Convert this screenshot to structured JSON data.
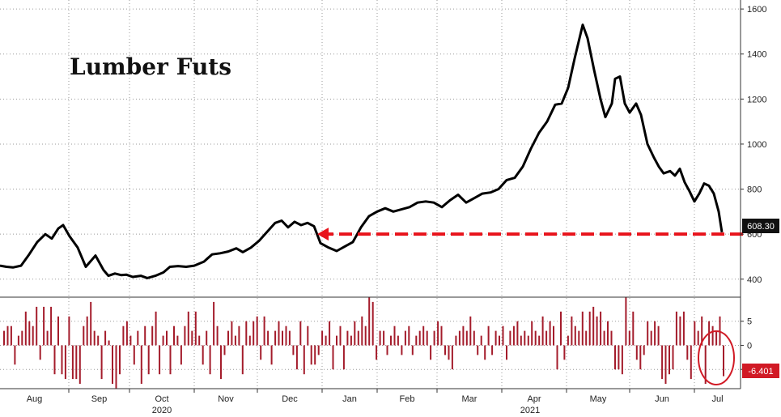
{
  "chart_data": [
    {
      "type": "line",
      "title": "Lumber Futs",
      "series": [
        {
          "values": [
            [
              0,
              460
            ],
            [
              8,
              455
            ],
            [
              16,
              452
            ],
            [
              26,
              460
            ],
            [
              36,
              510
            ],
            [
              46,
              565
            ],
            [
              56,
              600
            ],
            [
              64,
              580
            ],
            [
              72,
              625
            ],
            [
              78,
              640
            ],
            [
              86,
              590
            ],
            [
              96,
              540
            ],
            [
              106,
              455
            ],
            [
              118,
              505
            ],
            [
              128,
              440
            ],
            [
              134,
              415
            ],
            [
              142,
              425
            ],
            [
              150,
              418
            ],
            [
              156,
              420
            ],
            [
              164,
              410
            ],
            [
              174,
              415
            ],
            [
              182,
              405
            ],
            [
              192,
              415
            ],
            [
              202,
              430
            ],
            [
              210,
              455
            ],
            [
              220,
              458
            ],
            [
              230,
              455
            ],
            [
              240,
              460
            ],
            [
              252,
              478
            ],
            [
              262,
              510
            ],
            [
              272,
              515
            ],
            [
              282,
              523
            ],
            [
              292,
              537
            ],
            [
              300,
              520
            ],
            [
              310,
              540
            ],
            [
              320,
              570
            ],
            [
              330,
              610
            ],
            [
              340,
              650
            ],
            [
              348,
              660
            ],
            [
              356,
              630
            ],
            [
              364,
              655
            ],
            [
              372,
              640
            ],
            [
              380,
              650
            ],
            [
              388,
              635
            ],
            [
              396,
              560
            ],
            [
              406,
              540
            ],
            [
              416,
              525
            ],
            [
              426,
              545
            ],
            [
              436,
              565
            ],
            [
              446,
              630
            ],
            [
              456,
              680
            ],
            [
              466,
              700
            ],
            [
              476,
              715
            ],
            [
              486,
              700
            ],
            [
              496,
              710
            ],
            [
              506,
              720
            ],
            [
              516,
              740
            ],
            [
              526,
              745
            ],
            [
              536,
              740
            ],
            [
              546,
              720
            ],
            [
              556,
              750
            ],
            [
              566,
              775
            ],
            [
              576,
              740
            ],
            [
              586,
              760
            ],
            [
              596,
              780
            ],
            [
              606,
              785
            ],
            [
              616,
              800
            ],
            [
              626,
              840
            ],
            [
              636,
              850
            ],
            [
              646,
              900
            ],
            [
              656,
              980
            ],
            [
              666,
              1050
            ],
            [
              676,
              1100
            ],
            [
              686,
              1175
            ],
            [
              694,
              1180
            ],
            [
              702,
              1250
            ],
            [
              710,
              1380
            ],
            [
              716,
              1470
            ],
            [
              720,
              1530
            ],
            [
              726,
              1470
            ],
            [
              734,
              1330
            ],
            [
              742,
              1200
            ],
            [
              748,
              1120
            ],
            [
              756,
              1180
            ],
            [
              760,
              1290
            ],
            [
              766,
              1300
            ],
            [
              772,
              1180
            ],
            [
              778,
              1140
            ],
            [
              786,
              1180
            ],
            [
              792,
              1130
            ],
            [
              800,
              1000
            ],
            [
              808,
              940
            ],
            [
              814,
              900
            ],
            [
              820,
              870
            ],
            [
              828,
              880
            ],
            [
              834,
              860
            ],
            [
              840,
              890
            ],
            [
              846,
              830
            ],
            [
              852,
              790
            ],
            [
              858,
              745
            ],
            [
              864,
              780
            ],
            [
              870,
              825
            ],
            [
              876,
              815
            ],
            [
              882,
              780
            ],
            [
              888,
              700
            ],
            [
              892,
              608.3
            ]
          ]
        }
      ],
      "ylim": [
        320,
        1640
      ],
      "y_ticks": [
        "400",
        "600",
        "800",
        "1000",
        "1200",
        "1400",
        "1600"
      ],
      "last_value_label": "608.30",
      "annotation": {
        "type": "dashed-arrow",
        "y": 600,
        "x_from": 918,
        "x_to": 392,
        "color": "#e8131b"
      }
    },
    {
      "type": "bar",
      "series": [
        {
          "values": [
            3,
            4,
            4,
            -4,
            2,
            3,
            7,
            5,
            4,
            8,
            -3,
            8,
            3,
            8,
            -6,
            6,
            -6,
            -7,
            6,
            -7,
            -7,
            -8,
            4,
            6,
            9,
            3,
            2,
            -7,
            3,
            1,
            -8,
            -9,
            -6,
            4,
            5,
            2,
            -4,
            3,
            -8,
            4,
            -6,
            4,
            7,
            -6,
            2,
            3,
            -6,
            4,
            2,
            -4,
            4,
            7,
            3,
            7,
            2,
            -4,
            3,
            -6,
            9,
            4,
            -7,
            -2,
            3,
            5,
            2,
            4,
            -6,
            5,
            2,
            5,
            6,
            -3,
            6,
            3,
            -4,
            3,
            5,
            3,
            4,
            3,
            -2,
            -5,
            5,
            -6,
            4,
            -4,
            -4,
            -2,
            3,
            2,
            5,
            -5,
            2,
            4,
            -5,
            3,
            2,
            5,
            3,
            6,
            4,
            10,
            9,
            -3,
            3,
            3,
            -2,
            2,
            4,
            2,
            -2,
            3,
            4,
            -2,
            2,
            3,
            4,
            3,
            -3,
            3,
            5,
            4,
            -2,
            -3,
            -5,
            2,
            3,
            4,
            3,
            6,
            3,
            -2,
            2,
            -3,
            4,
            -2,
            3,
            2,
            4,
            -3,
            3,
            4,
            5,
            2,
            3,
            2,
            5,
            3,
            2,
            6,
            3,
            5,
            4,
            -5,
            7,
            -3,
            2,
            6,
            4,
            3,
            7,
            3,
            7,
            8,
            6,
            7,
            3,
            5,
            3,
            -5,
            -5,
            -6,
            10,
            3,
            7,
            -3,
            -5,
            -2,
            5,
            3,
            5,
            4,
            -7,
            -8,
            -6,
            -5,
            7,
            6,
            7,
            -3,
            -7,
            5,
            3,
            6,
            -8,
            5,
            4,
            3,
            6,
            -6.401
          ]
        }
      ],
      "ylim": [
        -9,
        10
      ],
      "y_ticks": [
        "-5",
        "0",
        "5"
      ],
      "last_value_label": "-6.401",
      "colors": {
        "bar": "#a41c2b",
        "highlight": "#d11a25"
      }
    }
  ],
  "x_axis": {
    "month_labels": [
      "Aug",
      "Sep",
      "Oct",
      "Nov",
      "Dec",
      "Jan",
      "Feb",
      "Mar",
      "Apr",
      "May",
      "Jun",
      "Jul"
    ],
    "year_labels": [
      "2020",
      "2021"
    ]
  }
}
